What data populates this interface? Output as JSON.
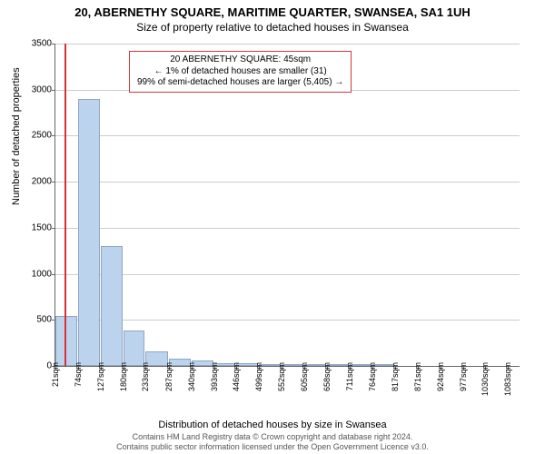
{
  "title_line1": "20, ABERNETHY SQUARE, MARITIME QUARTER, SWANSEA, SA1 1UH",
  "title_line2": "Size of property relative to detached houses in Swansea",
  "chart": {
    "type": "histogram",
    "y_label": "Number of detached properties",
    "x_label": "Distribution of detached houses by size in Swansea",
    "ylim_max": 3500,
    "ytick_step": 500,
    "yticks": [
      0,
      500,
      1000,
      1500,
      2000,
      2500,
      3000,
      3500
    ],
    "x_start": 21,
    "x_end": 1110,
    "xticks": [
      21,
      74,
      127,
      180,
      233,
      287,
      340,
      393,
      446,
      499,
      552,
      605,
      658,
      711,
      764,
      817,
      871,
      924,
      977,
      1030,
      1083
    ],
    "x_unit": "sqm",
    "marker_x": 45,
    "bars": [
      {
        "x0": 21,
        "x1": 74,
        "value": 540
      },
      {
        "x0": 74,
        "x1": 127,
        "value": 2900
      },
      {
        "x0": 127,
        "x1": 180,
        "value": 1300
      },
      {
        "x0": 180,
        "x1": 233,
        "value": 380
      },
      {
        "x0": 233,
        "x1": 287,
        "value": 160
      },
      {
        "x0": 287,
        "x1": 340,
        "value": 80
      },
      {
        "x0": 340,
        "x1": 393,
        "value": 55
      },
      {
        "x0": 393,
        "x1": 446,
        "value": 30
      },
      {
        "x0": 446,
        "x1": 499,
        "value": 25
      },
      {
        "x0": 499,
        "x1": 552,
        "value": 12
      },
      {
        "x0": 552,
        "x1": 605,
        "value": 8
      },
      {
        "x0": 605,
        "x1": 658,
        "value": 6
      },
      {
        "x0": 658,
        "x1": 711,
        "value": 4
      },
      {
        "x0": 711,
        "x1": 764,
        "value": 3
      },
      {
        "x0": 764,
        "x1": 817,
        "value": 2
      }
    ],
    "bar_fill": "#bcd3ed",
    "bar_stroke": "#8fa6c2",
    "marker_color": "#d83030",
    "grid_color": "#cccccc",
    "axis_color": "#666666",
    "background_color": "#ffffff",
    "tick_fontsize": 10,
    "label_fontsize": 11,
    "title_fontsize": 13
  },
  "legend": {
    "line1": "20 ABERNETHY SQUARE: 45sqm",
    "line2": "← 1% of detached houses are smaller (31)",
    "line3": "99% of semi-detached houses are larger (5,405) →",
    "border_color": "#cc3a3a"
  },
  "footer": {
    "line1": "Contains HM Land Registry data © Crown copyright and database right 2024.",
    "line2": "Contains public sector information licensed under the Open Government Licence v3.0."
  }
}
